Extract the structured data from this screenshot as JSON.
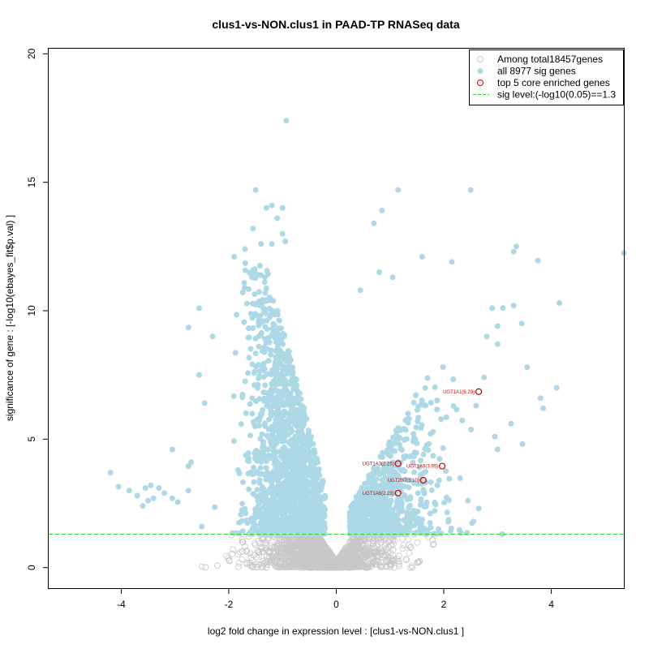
{
  "chart_data": {
    "type": "scatter",
    "title": "clus1-vs-NON.clus1 in PAAD-TP RNASeq data",
    "xlabel": "log2 fold change in expression level : [clus1-vs-NON.clus1 ]",
    "ylabel": "significance of gene : [-log10(ebayes_fit$p.val) ]",
    "xlim": [
      -5.35,
      5.35
    ],
    "ylim": [
      -0.8,
      20.2
    ],
    "x_ticks": [
      -4,
      -2,
      0,
      2,
      4
    ],
    "y_ticks": [
      0,
      5,
      10,
      15,
      20
    ],
    "sig_level": 1.3,
    "colors": {
      "nonsig": "#c8c8c8",
      "sig": "#add8e6",
      "core": "#cc0000",
      "sigline": "#33cc33"
    },
    "legend": {
      "position": "top-right",
      "entries": [
        "Among total18457genes",
        "all 8977 sig genes",
        "top 5 core enriched genes",
        "sig level:(-log10(0.05)==1.3"
      ]
    },
    "outliers": [
      [
        -0.93,
        17.4
      ],
      [
        -1.5,
        14.7
      ],
      [
        -1.3,
        14.0
      ],
      [
        -1.2,
        14.1
      ],
      [
        -1.0,
        14.0
      ],
      [
        -1.1,
        13.6
      ],
      [
        -1.55,
        13.2
      ],
      [
        -1.0,
        13.0
      ],
      [
        -0.95,
        12.7
      ],
      [
        -1.2,
        12.6
      ],
      [
        -1.4,
        12.6
      ],
      [
        -1.7,
        12.4
      ],
      [
        -1.9,
        12.1
      ],
      [
        -2.55,
        10.1
      ],
      [
        -2.75,
        9.35
      ],
      [
        -2.3,
        9.0
      ],
      [
        -2.55,
        7.5
      ],
      [
        -2.45,
        6.4
      ],
      [
        -2.7,
        4.1
      ],
      [
        -3.05,
        4.6
      ],
      [
        -2.75,
        3.95
      ],
      [
        -4.2,
        3.7
      ],
      [
        -4.05,
        3.15
      ],
      [
        -3.85,
        3.0
      ],
      [
        -3.7,
        2.8
      ],
      [
        -3.55,
        3.1
      ],
      [
        -3.45,
        3.2
      ],
      [
        -3.3,
        3.1
      ],
      [
        -3.2,
        2.9
      ],
      [
        -3.05,
        2.7
      ],
      [
        -2.95,
        2.55
      ],
      [
        -2.75,
        3.0
      ],
      [
        -3.5,
        2.6
      ],
      [
        -3.6,
        2.4
      ],
      [
        -3.4,
        2.7
      ],
      [
        -2.5,
        1.6
      ],
      [
        0.45,
        10.8
      ],
      [
        0.8,
        11.5
      ],
      [
        1.05,
        11.3
      ],
      [
        1.15,
        14.7
      ],
      [
        2.5,
        14.7
      ],
      [
        0.85,
        13.9
      ],
      [
        0.7,
        13.4
      ],
      [
        1.6,
        12.1
      ],
      [
        2.15,
        11.9
      ],
      [
        3.35,
        12.5
      ],
      [
        3.3,
        12.3
      ],
      [
        3.75,
        11.95
      ],
      [
        4.15,
        10.3
      ],
      [
        5.35,
        12.25
      ],
      [
        3.1,
        10.1
      ],
      [
        2.9,
        10.1
      ],
      [
        3.3,
        10.2
      ],
      [
        3.45,
        9.5
      ],
      [
        3.0,
        9.4
      ],
      [
        3.55,
        7.8
      ],
      [
        3.8,
        6.6
      ],
      [
        3.85,
        6.2
      ],
      [
        4.1,
        7.0
      ],
      [
        2.75,
        7.4
      ],
      [
        2.6,
        6.3
      ],
      [
        3.25,
        5.6
      ],
      [
        2.95,
        5.1
      ],
      [
        3.0,
        4.6
      ],
      [
        2.45,
        2.6
      ],
      [
        2.65,
        2.3
      ],
      [
        3.0,
        8.7
      ],
      [
        2.8,
        9.0
      ]
    ],
    "core_genes": [
      {
        "label": "UGT1A1(6.29)",
        "x": 2.65,
        "y": 6.85
      },
      {
        "label": "UGT1A3(2.25)",
        "x": 1.15,
        "y": 4.05
      },
      {
        "label": "UGT1A9(3.95)",
        "x": 1.97,
        "y": 3.95
      },
      {
        "label": "UGT2B7(3.10)",
        "x": 1.62,
        "y": 3.4
      },
      {
        "label": "UGT1A8(2.23)",
        "x": 1.15,
        "y": 2.9
      }
    ]
  }
}
